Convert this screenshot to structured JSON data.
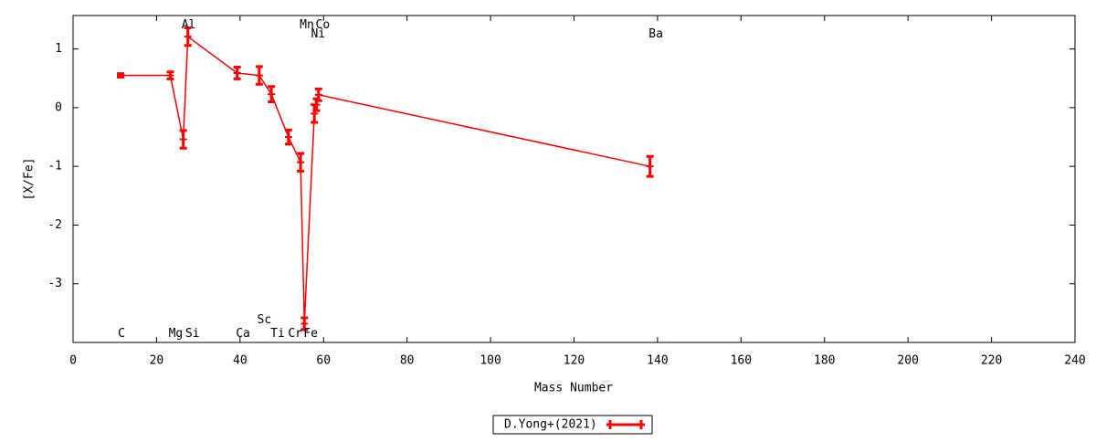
{
  "chart_data": {
    "type": "line",
    "x_label": "Mass Number",
    "y_label": "[X/Fe]",
    "xlim": [
      0,
      240
    ],
    "xticks": [
      0,
      20,
      40,
      60,
      80,
      100,
      120,
      140,
      160,
      180,
      200,
      220,
      240
    ],
    "ylim": [
      -4,
      1.57
    ],
    "yticks": [
      -3,
      -2,
      -1,
      0,
      1
    ],
    "grid": false,
    "legend_position": "bottom",
    "series": [
      {
        "name": "D.Yong+(2021)",
        "color": "#ff0000",
        "x": [
          11.4,
          23.3,
          26.4,
          27.5,
          39.3,
          44.6,
          47.5,
          51.6,
          54.5,
          55.4,
          57.8,
          58.3,
          58.8,
          138.2
        ],
        "values": [
          0.55,
          0.55,
          -0.54,
          1.21,
          0.59,
          0.55,
          0.23,
          -0.5,
          -0.93,
          -3.68,
          -0.1,
          0.05,
          0.22,
          -1.0
        ],
        "errors": [
          0.03,
          0.06,
          0.15,
          0.15,
          0.1,
          0.15,
          0.13,
          0.12,
          0.15,
          0.1,
          0.15,
          0.1,
          0.1,
          0.17
        ]
      }
    ],
    "annotations": [
      {
        "text": "C",
        "x": 11.6,
        "y": -3.85
      },
      {
        "text": "Mg",
        "x": 24.6,
        "y": -3.85
      },
      {
        "text": "Si",
        "x": 28.6,
        "y": -3.85
      },
      {
        "text": "Ca",
        "x": 40.7,
        "y": -3.85
      },
      {
        "text": "Sc",
        "x": 45.8,
        "y": -3.62
      },
      {
        "text": "Ti",
        "x": 49,
        "y": -3.85
      },
      {
        "text": "Cr",
        "x": 53.2,
        "y": -3.85
      },
      {
        "text": "Fe",
        "x": 56.9,
        "y": -3.85
      },
      {
        "text": "Al",
        "x": 27.7,
        "y": 1.41
      },
      {
        "text": "Mn",
        "x": 56,
        "y": 1.41
      },
      {
        "text": "Co",
        "x": 59.8,
        "y": 1.41
      },
      {
        "text": "Ni",
        "x": 58.7,
        "y": 1.25
      },
      {
        "text": "Ba",
        "x": 139.6,
        "y": 1.25
      }
    ]
  }
}
